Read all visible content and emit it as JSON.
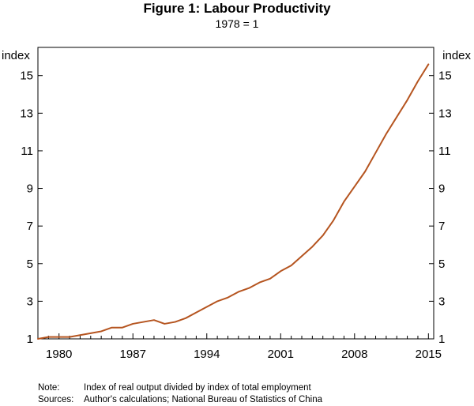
{
  "chart_data": {
    "type": "line",
    "title": "Figure 1: Labour Productivity",
    "subtitle": "1978 = 1",
    "ylabel_left": "index",
    "ylabel_right": "index",
    "xlim": [
      1978,
      2015.5
    ],
    "ylim": [
      1,
      16.5
    ],
    "x_ticks": [
      1980,
      1987,
      1994,
      2001,
      2008,
      2015
    ],
    "y_ticks": [
      1,
      3,
      5,
      7,
      9,
      11,
      13,
      15
    ],
    "grid": false,
    "line_color": "#b5541f",
    "series": [
      {
        "x": [
          1978,
          1979,
          1980,
          1981,
          1982,
          1983,
          1984,
          1985,
          1986,
          1987,
          1988,
          1989,
          1990,
          1991,
          1992,
          1993,
          1994,
          1995,
          1996,
          1997,
          1998,
          1999,
          2000,
          2001,
          2002,
          2003,
          2004,
          2005,
          2006,
          2007,
          2008,
          2009,
          2010,
          2011,
          2012,
          2013,
          2014,
          2015
        ],
        "y": [
          1.0,
          1.1,
          1.1,
          1.1,
          1.2,
          1.3,
          1.4,
          1.6,
          1.6,
          1.8,
          1.9,
          2.0,
          1.8,
          1.9,
          2.1,
          2.4,
          2.7,
          3.0,
          3.2,
          3.5,
          3.7,
          4.0,
          4.2,
          4.6,
          4.9,
          5.4,
          5.9,
          6.5,
          7.3,
          8.3,
          9.1,
          9.9,
          10.9,
          11.9,
          12.8,
          13.7,
          14.7,
          15.6
        ]
      }
    ]
  },
  "notes": [
    {
      "label": "Note:",
      "text": "Index of real output divided by index of total employment"
    },
    {
      "label": "Sources:",
      "text": "Author's calculations; National Bureau of Statistics of China"
    }
  ]
}
